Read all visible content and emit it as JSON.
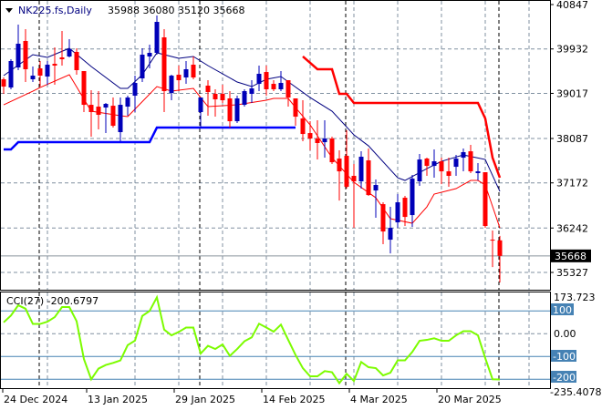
{
  "header": {
    "symbol": "NK225.fs,Daily",
    "ohlc": "35988 36080 35120 35668",
    "menu_icon": "triangle-down-icon"
  },
  "price_axis": {
    "ticks": [
      "40847",
      "39932",
      "39017",
      "38087",
      "37172",
      "36242",
      "35327"
    ],
    "current": "35668"
  },
  "cci": {
    "label": "CCI(27) -200.6797",
    "axis_top": "173.723",
    "axis_zero": "0.00",
    "axis_bottom": "-235.4078",
    "levels": [
      "100",
      "-100",
      "-200"
    ]
  },
  "dates": [
    {
      "label": "24 Dec 2024",
      "bar": 0
    },
    {
      "label": "13 Jan 2025",
      "bar": 12
    },
    {
      "label": "29 Jan 2025",
      "bar": 24
    },
    {
      "label": "14 Feb 2025",
      "bar": 36
    },
    {
      "label": "4 Mar 2025",
      "bar": 48
    },
    {
      "label": "20 Mar 2025",
      "bar": 60
    }
  ],
  "colors": {
    "bull": "#0000b8",
    "bear": "#ff0000",
    "ma_fast": "#000080",
    "ma_slow": "#ff0000",
    "support": "#0000ff",
    "resistance": "#ff0000",
    "cci": "#7cfc00",
    "level": "#4682b4"
  },
  "chart_data": [
    {
      "type": "candlestick",
      "title": "NK225.fs,Daily",
      "ylim": [
        35327,
        40847
      ],
      "grid": true,
      "candles_ohlc": [
        [
          39307,
          39345,
          39007,
          39157
        ],
        [
          39138,
          39720,
          39101,
          39683
        ],
        [
          39551,
          40434,
          39495,
          40040
        ],
        [
          40096,
          40340,
          39251,
          39514
        ],
        [
          39307,
          39570,
          39251,
          39382
        ],
        [
          39532,
          39683,
          39157,
          39382
        ],
        [
          39364,
          39683,
          39195,
          39608
        ],
        [
          39626,
          39965,
          39195,
          39589
        ],
        [
          39758,
          40302,
          39589,
          39720
        ],
        [
          39777,
          40133,
          39758,
          39927
        ],
        [
          39871,
          39946,
          39401,
          39495
        ],
        [
          39476,
          39476,
          38631,
          38781
        ],
        [
          38781,
          39082,
          38124,
          38631
        ],
        [
          38744,
          39063,
          38274,
          38575
        ],
        [
          38725,
          38819,
          38199,
          38800
        ],
        [
          38762,
          38931,
          38312,
          38349
        ],
        [
          38218,
          38931,
          38030,
          38781
        ],
        [
          38744,
          38969,
          38556,
          38931
        ],
        [
          38969,
          39382,
          38631,
          39232
        ],
        [
          39326,
          39946,
          39251,
          39814
        ],
        [
          39777,
          40021,
          39532,
          39852
        ],
        [
          39852,
          40622,
          39814,
          40490
        ],
        [
          40171,
          40340,
          38631,
          39063
        ],
        [
          39025,
          39401,
          38875,
          39382
        ],
        [
          39401,
          39589,
          39063,
          39288
        ],
        [
          39345,
          39683,
          39213,
          39514
        ],
        [
          39608,
          39777,
          39307,
          39345
        ],
        [
          38631,
          38931,
          38312,
          38931
        ],
        [
          39176,
          39288,
          38556,
          39044
        ],
        [
          39007,
          39101,
          38537,
          38894
        ],
        [
          39007,
          39195,
          38819,
          38875
        ],
        [
          38913,
          39063,
          38312,
          38443
        ],
        [
          38443,
          38969,
          38406,
          38913
        ],
        [
          38781,
          39101,
          38744,
          39063
        ],
        [
          39007,
          39288,
          38819,
          39119
        ],
        [
          39213,
          39589,
          39063,
          39420
        ],
        [
          39457,
          39589,
          38969,
          39101
        ],
        [
          39213,
          39288,
          39063,
          39101
        ],
        [
          39101,
          39476,
          39063,
          39232
        ],
        [
          39288,
          39288,
          38744,
          38931
        ],
        [
          38913,
          38913,
          38349,
          38537
        ],
        [
          38500,
          38875,
          38030,
          38180
        ],
        [
          38199,
          38443,
          37842,
          38086
        ],
        [
          38086,
          38462,
          37654,
          37993
        ],
        [
          38011,
          38462,
          37692,
          38086
        ],
        [
          38086,
          38124,
          37561,
          37598
        ],
        [
          37673,
          37842,
          36809,
          37410
        ],
        [
          37730,
          38255,
          37054,
          37091
        ],
        [
          37317,
          37561,
          36246,
          37204
        ],
        [
          37204,
          37823,
          37054,
          37711
        ],
        [
          37636,
          37880,
          36903,
          36922
        ],
        [
          37016,
          37241,
          36453,
          37129
        ],
        [
          36734,
          36772,
          35908,
          36171
        ],
        [
          36002,
          36678,
          35720,
          36246
        ],
        [
          36359,
          36941,
          36246,
          36772
        ],
        [
          36866,
          36903,
          36284,
          36471
        ],
        [
          36509,
          37335,
          36265,
          37260
        ],
        [
          37204,
          37767,
          37110,
          37654
        ],
        [
          37673,
          37692,
          37317,
          37523
        ],
        [
          37523,
          37861,
          37279,
          37617
        ],
        [
          37617,
          37692,
          37147,
          37410
        ],
        [
          37410,
          37692,
          37091,
          37317
        ],
        [
          37504,
          37748,
          37317,
          37673
        ],
        [
          37692,
          37880,
          37410,
          37805
        ],
        [
          37823,
          37955,
          37373,
          37410
        ],
        [
          37373,
          37579,
          37223,
          37410
        ],
        [
          37392,
          37392,
          36246,
          36284
        ],
        [
          36002,
          36190,
          35438,
          35983
        ],
        [
          35988,
          36080,
          35120,
          35668
        ]
      ],
      "ma_fast": [
        [
          0,
          39382
        ],
        [
          4,
          39814
        ],
        [
          6,
          39758
        ],
        [
          9,
          39946
        ],
        [
          12,
          39570
        ],
        [
          16,
          39119
        ],
        [
          17,
          39119
        ],
        [
          19,
          39401
        ],
        [
          21,
          39852
        ],
        [
          24,
          39739
        ],
        [
          26,
          39777
        ],
        [
          28,
          39589
        ],
        [
          32,
          39251
        ],
        [
          34,
          39157
        ],
        [
          36,
          39307
        ],
        [
          38,
          39364
        ],
        [
          42,
          38931
        ],
        [
          45,
          38650
        ],
        [
          48,
          38162
        ],
        [
          50,
          37936
        ],
        [
          54,
          37279
        ],
        [
          55,
          37223
        ],
        [
          58,
          37467
        ],
        [
          60,
          37617
        ],
        [
          63,
          37748
        ],
        [
          66,
          37654
        ],
        [
          68,
          36997
        ]
      ],
      "ma_slow": [
        [
          0,
          38781
        ],
        [
          4,
          39063
        ],
        [
          5,
          39138
        ],
        [
          9,
          39401
        ],
        [
          12,
          38650
        ],
        [
          16,
          38556
        ],
        [
          17,
          38537
        ],
        [
          21,
          39157
        ],
        [
          23,
          39063
        ],
        [
          26,
          39119
        ],
        [
          28,
          38744
        ],
        [
          32,
          38781
        ],
        [
          36,
          38875
        ],
        [
          37,
          38913
        ],
        [
          39,
          38913
        ],
        [
          40,
          38725
        ],
        [
          42,
          38368
        ],
        [
          45,
          37692
        ],
        [
          48,
          37185
        ],
        [
          51,
          36866
        ],
        [
          53,
          36434
        ],
        [
          56,
          36340
        ],
        [
          58,
          36678
        ],
        [
          59,
          36941
        ],
        [
          62,
          37054
        ],
        [
          64,
          37223
        ],
        [
          65,
          37223
        ],
        [
          66,
          37129
        ],
        [
          68,
          36246
        ]
      ],
      "support": [
        [
          0,
          37861
        ],
        [
          1,
          37861
        ],
        [
          2,
          38011
        ],
        [
          20,
          38011
        ],
        [
          21,
          38312
        ],
        [
          40,
          38312
        ]
      ],
      "resistance": [
        [
          41,
          39777
        ],
        [
          43,
          39514
        ],
        [
          45,
          39514
        ],
        [
          46,
          39007
        ],
        [
          47,
          39007
        ],
        [
          48,
          38819
        ],
        [
          65,
          38819
        ],
        [
          66,
          38500
        ],
        [
          67,
          37692
        ],
        [
          68,
          37279
        ]
      ],
      "current_price": 35668
    },
    {
      "type": "line",
      "title": "CCI(27)",
      "ylim": [
        -235.4078,
        173.723
      ],
      "levels": [
        100,
        0,
        -100,
        -200
      ],
      "values": [
        50,
        80,
        125,
        110,
        43,
        43,
        53,
        73,
        117,
        117,
        55,
        -111,
        -200,
        -153,
        -137,
        -128,
        -117,
        -50,
        -30,
        78,
        100,
        160,
        18,
        -7,
        8,
        27,
        27,
        -87,
        -53,
        -67,
        -47,
        -97,
        -67,
        -33,
        -16,
        44,
        27,
        9,
        40,
        -27,
        -93,
        -151,
        -187,
        -187,
        -164,
        -169,
        -217,
        -176,
        -207,
        -124,
        -147,
        -151,
        -183,
        -171,
        -117,
        -117,
        -80,
        -31,
        -27,
        -20,
        -31,
        -31,
        -7,
        11,
        11,
        -7,
        -107,
        -200,
        -200.6797
      ]
    }
  ]
}
